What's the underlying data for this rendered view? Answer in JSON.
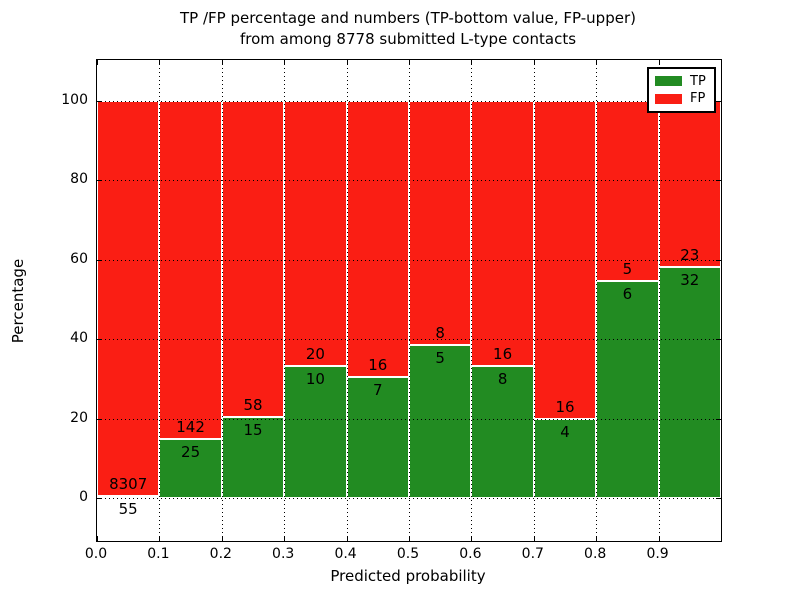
{
  "chart_data": {
    "type": "bar",
    "subtype": "stacked-percentage-histogram",
    "title_line1": "TP /FP percentage and numbers (TP-bottom value, FP-upper)",
    "title_line2": "from among 8778 submitted L-type contacts",
    "xlabel": "Predicted probability",
    "ylabel": "Percentage",
    "x_tick_labels": [
      "0.0",
      "0.1",
      "0.2",
      "0.3",
      "0.4",
      "0.5",
      "0.6",
      "0.7",
      "0.8",
      "0.9"
    ],
    "y_tick_values": [
      0,
      20,
      40,
      60,
      80,
      100
    ],
    "xlim": [
      0.0,
      1.0
    ],
    "ylim": [
      -10.7,
      110.2
    ],
    "grid": true,
    "grid_style": "dotted-black",
    "colors": {
      "tp": "#228b22",
      "fp": "#fa1e14"
    },
    "legend": {
      "position": "upper-right",
      "entries": [
        {
          "label": "TP",
          "color": "#228b22"
        },
        {
          "label": "FP",
          "color": "#fa1e14"
        }
      ]
    },
    "bins": [
      {
        "range": [
          0.0,
          0.1
        ],
        "tp": 55,
        "fp": 8307
      },
      {
        "range": [
          0.1,
          0.2
        ],
        "tp": 25,
        "fp": 142
      },
      {
        "range": [
          0.2,
          0.3
        ],
        "tp": 15,
        "fp": 58
      },
      {
        "range": [
          0.3,
          0.4
        ],
        "tp": 10,
        "fp": 20
      },
      {
        "range": [
          0.4,
          0.5
        ],
        "tp": 7,
        "fp": 16
      },
      {
        "range": [
          0.5,
          0.6
        ],
        "tp": 5,
        "fp": 8
      },
      {
        "range": [
          0.6,
          0.7
        ],
        "tp": 8,
        "fp": 16
      },
      {
        "range": [
          0.7,
          0.8
        ],
        "tp": 4,
        "fp": 16
      },
      {
        "range": [
          0.8,
          0.9
        ],
        "tp": 6,
        "fp": 5
      },
      {
        "range": [
          0.9,
          1.0
        ],
        "tp": 32,
        "fp": 23
      }
    ]
  }
}
